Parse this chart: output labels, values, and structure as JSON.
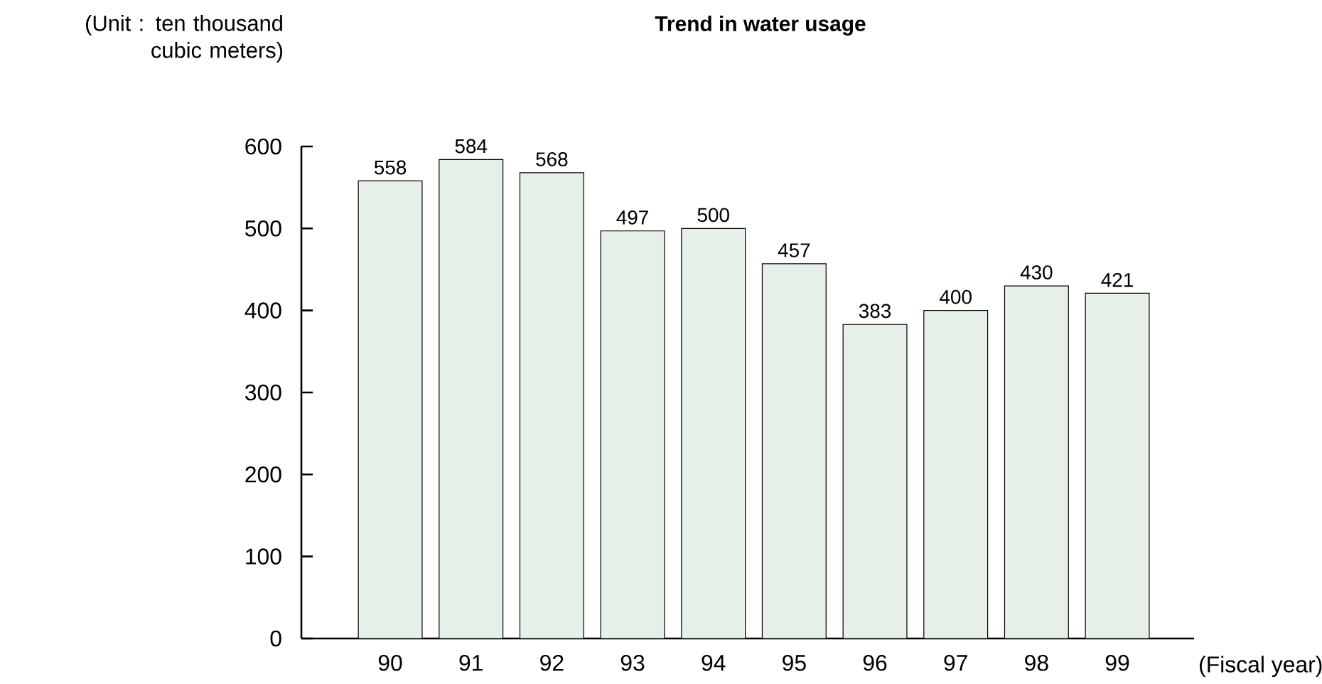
{
  "chart_data": {
    "type": "bar",
    "title": "Trend in water usage",
    "xlabel": "(Fiscal year)",
    "ylabel": "(Unit : ten thousand cubic meters)",
    "categories": [
      "90",
      "91",
      "92",
      "93",
      "94",
      "95",
      "96",
      "97",
      "98",
      "99"
    ],
    "values": [
      558,
      584,
      568,
      497,
      500,
      457,
      383,
      400,
      430,
      421
    ],
    "color": "#e6f0e6",
    "ylim": [
      0,
      600
    ],
    "yticks": [
      0,
      100,
      200,
      300,
      400,
      500,
      600
    ],
    "grid": false,
    "data_labels": true
  }
}
